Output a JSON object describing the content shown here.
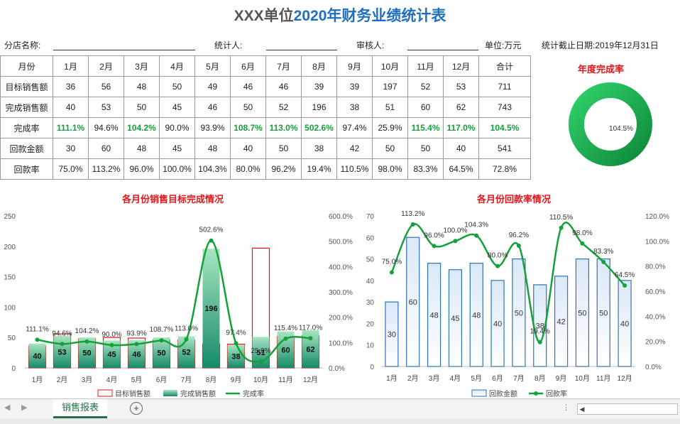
{
  "header": {
    "title_part1": "XXX单位",
    "title_part2": "2020年财务业绩统计表"
  },
  "info": {
    "branch_label": "分店名称:",
    "stat_label": "统计人:",
    "review_label": "审核人:",
    "unit_label": "单位:万元",
    "date_label": "统计截止日期:2019年12月31日"
  },
  "table": {
    "corner": "月份",
    "months": [
      "1月",
      "2月",
      "3月",
      "4月",
      "5月",
      "6月",
      "7月",
      "8月",
      "9月",
      "10月",
      "11月",
      "12月"
    ],
    "total_header": "合计",
    "rows": [
      {
        "label": "目标销售额",
        "values": [
          "36",
          "56",
          "48",
          "50",
          "49",
          "46",
          "46",
          "39",
          "39",
          "197",
          "52",
          "53"
        ],
        "total": "711"
      },
      {
        "label": "完成销售额",
        "values": [
          "40",
          "53",
          "50",
          "45",
          "46",
          "50",
          "52",
          "196",
          "38",
          "51",
          "60",
          "62"
        ],
        "total": "743"
      },
      {
        "label": "完成率",
        "values": [
          "111.1%",
          "94.6%",
          "104.2%",
          "90.0%",
          "93.9%",
          "108.7%",
          "113.0%",
          "502.6%",
          "97.4%",
          "25.9%",
          "115.4%",
          "117.0%"
        ],
        "total": "104.5%"
      },
      {
        "label": "回款金额",
        "values": [
          "30",
          "60",
          "48",
          "45",
          "48",
          "40",
          "50",
          "38",
          "42",
          "50",
          "50",
          "40"
        ],
        "total": "541"
      },
      {
        "label": "回款率",
        "values": [
          "75.0%",
          "113.2%",
          "96.0%",
          "100.0%",
          "104.3%",
          "80.0%",
          "96.2%",
          "19.4%",
          "110.5%",
          "98.0%",
          "83.3%",
          "64.5%"
        ],
        "total": "72.8%"
      }
    ]
  },
  "colors": {
    "accent_green": "#14a03a",
    "title_red": "#e0161b",
    "title_blue": "#1f6fbf",
    "bar_blue": "#2e75b6",
    "target_red": "#e0161b"
  },
  "chart_data": [
    {
      "type": "pie",
      "title": "年度完成率",
      "values": [
        104.5
      ],
      "center_label": "104.5%"
    },
    {
      "type": "bar",
      "title": "各月份销售目标完成情况",
      "categories": [
        "1月",
        "2月",
        "3月",
        "4月",
        "5月",
        "6月",
        "7月",
        "8月",
        "9月",
        "10月",
        "11月",
        "12月"
      ],
      "ylim": [
        0,
        250
      ],
      "yticks": [
        "0",
        "50",
        "100",
        "150",
        "200",
        "250"
      ],
      "y2lim": [
        0,
        600
      ],
      "y2ticks": [
        "0.0%",
        "100.0%",
        "200.0%",
        "300.0%",
        "400.0%",
        "500.0%",
        "600.0%"
      ],
      "series": [
        {
          "name": "目标销售额",
          "values": [
            36,
            56,
            48,
            50,
            49,
            46,
            46,
            39,
            39,
            197,
            52,
            53
          ]
        },
        {
          "name": "完成销售额",
          "values": [
            40,
            53,
            50,
            45,
            46,
            50,
            52,
            196,
            38,
            51,
            60,
            62
          ]
        },
        {
          "name": "完成率",
          "values": [
            111.1,
            94.6,
            104.2,
            90.0,
            93.9,
            108.7,
            113.0,
            502.6,
            97.4,
            25.9,
            115.4,
            117.0
          ]
        }
      ],
      "bar_labels": [
        "40",
        "53",
        "50",
        "45",
        "46",
        "50",
        "52",
        "196",
        "38",
        "51",
        "60",
        "62"
      ],
      "rate_labels": [
        "111.1%",
        "94.6%",
        "104.2%",
        "90.0%",
        "93.9%",
        "108.7%",
        "113.0%",
        "502.6%",
        "97.4%",
        "25.9%",
        "115.4%",
        "117.0%"
      ],
      "legend": "bottom"
    },
    {
      "type": "bar",
      "title": "各月份回款率情况",
      "categories": [
        "1月",
        "2月",
        "3月",
        "4月",
        "5月",
        "6月",
        "7月",
        "8月",
        "9月",
        "10月",
        "11月",
        "12月"
      ],
      "ylim": [
        0,
        70
      ],
      "yticks": [
        "0",
        "10",
        "20",
        "30",
        "40",
        "50",
        "60",
        "70"
      ],
      "y2lim": [
        0,
        120
      ],
      "y2ticks": [
        "0.0%",
        "20.0%",
        "40.0%",
        "60.0%",
        "80.0%",
        "100.0%",
        "120.0%"
      ],
      "series": [
        {
          "name": "回款金额",
          "values": [
            30,
            60,
            48,
            45,
            48,
            40,
            50,
            38,
            42,
            50,
            50,
            40
          ]
        },
        {
          "name": "回款率",
          "values": [
            75.0,
            113.2,
            96.0,
            100.0,
            104.3,
            80.0,
            96.2,
            19.4,
            110.5,
            98.0,
            83.3,
            64.5
          ]
        }
      ],
      "bar_labels": [
        "30",
        "60",
        "48",
        "45",
        "48",
        "40",
        "50",
        "38",
        "42",
        "50",
        "50",
        "40"
      ],
      "rate_labels": [
        "75.0%",
        "113.2%",
        "96.0%",
        "100.0%",
        "104.3%",
        "80.0%",
        "96.2%",
        "19.4%",
        "110.5%",
        "98.0%",
        "83.3%",
        "64.5%"
      ],
      "legend": "bottom"
    }
  ],
  "sheet_tabs": {
    "active": "销售报表",
    "add_icon": "plus-circle-icon"
  }
}
